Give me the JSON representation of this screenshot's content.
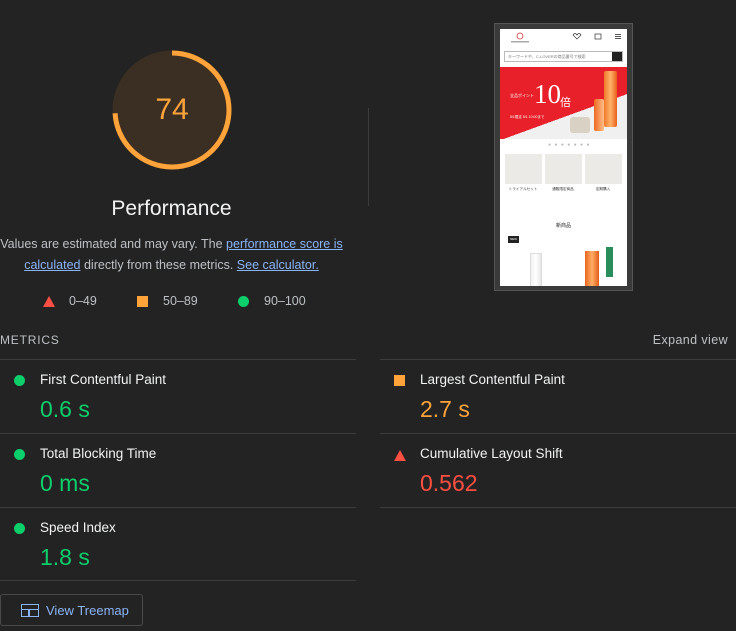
{
  "gauge": {
    "score": "74",
    "score_fraction": 0.74,
    "color": "#ffa33a"
  },
  "performance": {
    "title": "Performance",
    "desc_prefix": "Values are estimated and may vary. The ",
    "link_score": "performance score is calculated",
    "desc_middle": " directly from these metrics. ",
    "link_calculator": "See calculator."
  },
  "legend": {
    "fail": "0–49",
    "average": "50–89",
    "pass": "90–100"
  },
  "screenshot": {
    "search_placeholder": "キーワードや、C-LOVERの商品番号で検索",
    "banner_big": "10",
    "banner_unit": "倍",
    "banner_small": "全品ポイント",
    "banner_note": "5/1限定 5/1 10:00まで",
    "dots": "● ● ● ● ● ● ●",
    "categories": [
      "トライアルセット",
      "通販限定商品",
      "定期購入"
    ],
    "new_heading": "新商品",
    "new_tag": "NEW"
  },
  "metrics": {
    "header": "METRICS",
    "expand": "Expand view",
    "items": [
      {
        "title": "First Contentful Paint",
        "value": "0.6 s",
        "status": "pass"
      },
      {
        "title": "Largest Contentful Paint",
        "value": "2.7 s",
        "status": "average"
      },
      {
        "title": "Total Blocking Time",
        "value": "0 ms",
        "status": "pass"
      },
      {
        "title": "Cumulative Layout Shift",
        "value": "0.562",
        "status": "fail"
      },
      {
        "title": "Speed Index",
        "value": "1.8 s",
        "status": "pass"
      }
    ]
  },
  "treemap": {
    "label": "View Treemap"
  },
  "colors": {
    "pass": "#0cce6b",
    "average": "#ffa33a",
    "fail": "#ff4e42"
  }
}
